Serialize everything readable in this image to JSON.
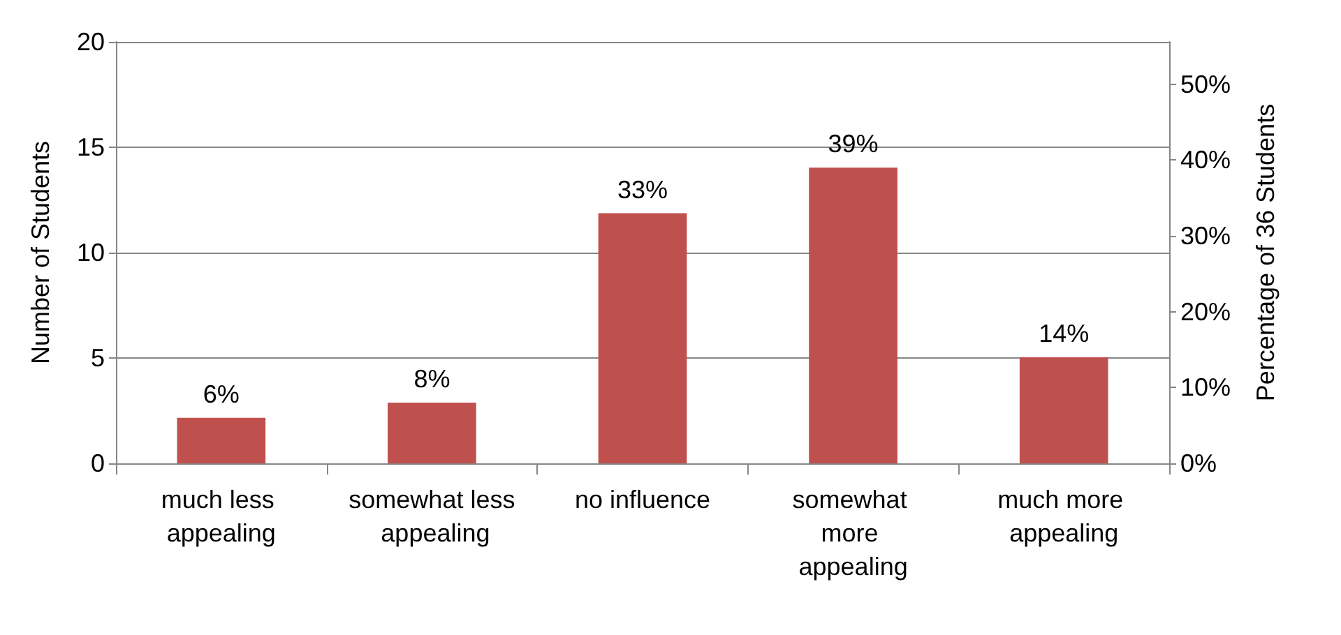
{
  "chart_data": {
    "type": "bar",
    "categories": [
      "much less appealing",
      "somewhat less appealing",
      "no influence",
      "somewhat more appealing",
      "much more appealing"
    ],
    "series": [
      {
        "values": [
          6,
          8,
          33,
          39,
          14
        ],
        "axis": "y2",
        "color": "#c0504d",
        "value_labels": [
          "6%",
          "8%",
          "33%",
          "39%",
          "14%"
        ]
      }
    ],
    "ylabel": "Number of Students",
    "y2label": "Percentage of 36 Students",
    "ylim": [
      0,
      20
    ],
    "yticks": [
      0,
      5,
      10,
      15,
      20
    ],
    "y2lim": [
      0,
      55.6
    ],
    "y2ticks": [
      {
        "value": 0,
        "label": "0%"
      },
      {
        "value": 10,
        "label": "10%"
      },
      {
        "value": 20,
        "label": "20%"
      },
      {
        "value": 30,
        "label": "30%"
      },
      {
        "value": 40,
        "label": "40%"
      },
      {
        "value": 50,
        "label": "50%"
      }
    ],
    "grid": "y"
  }
}
